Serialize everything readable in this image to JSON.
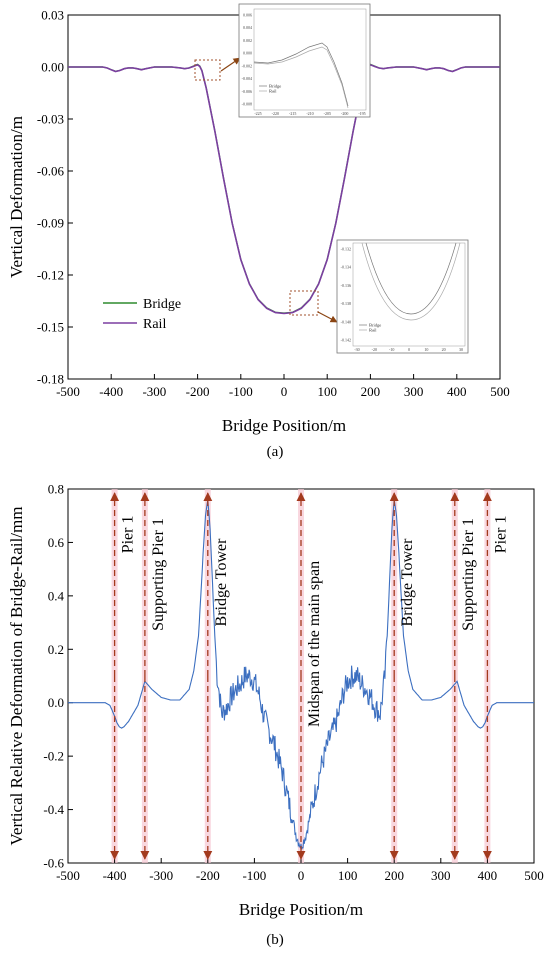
{
  "chart_data": [
    {
      "type": "line",
      "panel_label": "(a)",
      "xlabel": "Bridge Position/m",
      "ylabel": "Vertical Deformation/m",
      "xlim": [
        -500,
        500
      ],
      "ylim": [
        -0.18,
        0.03
      ],
      "x_ticks": [
        -500,
        -400,
        -300,
        -200,
        -100,
        0,
        100,
        200,
        300,
        400,
        500
      ],
      "y_ticks": [
        "0.03",
        "0.00",
        "-0.03",
        "-0.06",
        "-0.09",
        "-0.12",
        "-0.15",
        "-0.18"
      ],
      "y_tick_values": [
        0.03,
        0.0,
        -0.03,
        -0.06,
        -0.09,
        -0.12,
        -0.15,
        -0.18
      ],
      "legend_position": "bottom-left",
      "series": [
        {
          "name": "Bridge",
          "color": "#2e8b2e",
          "x": [
            -500,
            -420,
            -410,
            -400,
            -390,
            -380,
            -370,
            -360,
            -350,
            -340,
            -330,
            -320,
            -300,
            -260,
            -240,
            -230,
            -220,
            -210,
            -205,
            -200,
            -195,
            -190,
            -180,
            -160,
            -140,
            -120,
            -100,
            -80,
            -60,
            -40,
            -20,
            0,
            20,
            40,
            60,
            80,
            100,
            120,
            140,
            160,
            180,
            190,
            195,
            200,
            205,
            210,
            220,
            230,
            240,
            260,
            300,
            320,
            330,
            340,
            350,
            360,
            370,
            380,
            390,
            400,
            410,
            420,
            500
          ],
          "y": [
            0.0,
            0.0,
            -0.0005,
            -0.0015,
            -0.0025,
            -0.002,
            -0.001,
            -0.0005,
            -0.0005,
            -0.001,
            -0.0015,
            -0.001,
            0.0,
            0.0,
            -0.0005,
            -0.001,
            -0.0005,
            0.0005,
            0.001,
            0.0015,
            0.0005,
            -0.002,
            -0.012,
            -0.037,
            -0.064,
            -0.09,
            -0.111,
            -0.125,
            -0.134,
            -0.139,
            -0.1415,
            -0.142,
            -0.1415,
            -0.139,
            -0.134,
            -0.125,
            -0.111,
            -0.09,
            -0.064,
            -0.037,
            -0.012,
            -0.002,
            0.0005,
            0.0015,
            0.001,
            0.0005,
            -0.0005,
            -0.001,
            -0.0005,
            0.0,
            0.0,
            -0.001,
            -0.0015,
            -0.001,
            -0.0005,
            -0.0005,
            -0.001,
            -0.002,
            -0.0025,
            -0.0015,
            -0.0005,
            0.0,
            0.0
          ]
        },
        {
          "name": "Rail",
          "color": "#7b3fa0",
          "x": [
            -500,
            -420,
            -410,
            -400,
            -390,
            -380,
            -370,
            -360,
            -350,
            -340,
            -330,
            -320,
            -300,
            -260,
            -240,
            -230,
            -220,
            -210,
            -205,
            -200,
            -195,
            -190,
            -180,
            -160,
            -140,
            -120,
            -100,
            -80,
            -60,
            -40,
            -20,
            0,
            20,
            40,
            60,
            80,
            100,
            120,
            140,
            160,
            180,
            190,
            195,
            200,
            205,
            210,
            220,
            230,
            240,
            260,
            300,
            320,
            330,
            340,
            350,
            360,
            370,
            380,
            390,
            400,
            410,
            420,
            500
          ],
          "y": [
            0.0,
            0.0,
            -0.0005,
            -0.0016,
            -0.0026,
            -0.002,
            -0.001,
            -0.0005,
            -0.0005,
            -0.001,
            -0.0016,
            -0.001,
            0.0,
            0.0,
            -0.0005,
            -0.001,
            -0.0006,
            0.0003,
            0.0008,
            0.0012,
            0.0003,
            -0.0022,
            -0.0122,
            -0.0372,
            -0.0642,
            -0.0902,
            -0.1112,
            -0.1252,
            -0.1342,
            -0.1392,
            -0.1417,
            -0.1422,
            -0.1417,
            -0.1392,
            -0.1342,
            -0.1252,
            -0.1112,
            -0.0902,
            -0.0642,
            -0.0372,
            -0.0122,
            -0.0022,
            0.0003,
            0.0012,
            0.0008,
            0.0003,
            -0.0006,
            -0.001,
            -0.0005,
            0.0,
            0.0,
            -0.001,
            -0.0016,
            -0.001,
            -0.0005,
            -0.0005,
            -0.001,
            -0.002,
            -0.0026,
            -0.0016,
            -0.0005,
            0.0,
            0.0
          ]
        }
      ],
      "insets": [
        {
          "zoom_box": {
            "x": [
              -245,
              -195
            ],
            "y": [
              -0.007,
              0.003
            ]
          },
          "y_ticks": [
            "0.006",
            "0.004",
            "0.002",
            "0.000",
            "-0.002",
            "-0.004",
            "-0.006",
            "-0.008"
          ],
          "x_ticks": [
            "-225",
            "-220",
            "-215",
            "-210",
            "-205",
            "-200",
            "-195"
          ],
          "legend": [
            "Bridge",
            "Rail"
          ]
        },
        {
          "zoom_box": {
            "x": [
              -30,
              30
            ],
            "y": [
              -0.146,
              -0.131
            ]
          },
          "y_ticks": [
            "-0.132",
            "-0.134",
            "-0.136",
            "-0.138",
            "-0.140",
            "-0.142"
          ],
          "x_ticks": [
            "-30",
            "-20",
            "-10",
            "0",
            "10",
            "20",
            "30"
          ],
          "legend": [
            "Bridge",
            "Rail"
          ]
        }
      ]
    },
    {
      "type": "line",
      "panel_label": "(b)",
      "xlabel": "Bridge Position/m",
      "ylabel": "Vertical Relative Deformation of Bridge-Rail/mm",
      "xlim": [
        -500,
        500
      ],
      "ylim": [
        -0.6,
        0.8
      ],
      "x_ticks": [
        -500,
        -400,
        -300,
        -200,
        -100,
        0,
        100,
        200,
        300,
        400,
        500
      ],
      "y_ticks": [
        "0.8",
        "0.6",
        "0.4",
        "0.2",
        "0.0",
        "-0.2",
        "-0.4",
        "-0.6"
      ],
      "y_tick_values": [
        0.8,
        0.6,
        0.4,
        0.2,
        0.0,
        -0.2,
        -0.4,
        -0.6
      ],
      "series": [
        {
          "color": "#3c6fc0",
          "x": [
            -500,
            -420,
            -410,
            -405,
            -400,
            -395,
            -390,
            -385,
            -380,
            -370,
            -360,
            -350,
            -345,
            -340,
            -335,
            -330,
            -320,
            -300,
            -280,
            -260,
            -240,
            -230,
            -220,
            -215,
            -210,
            -205,
            -200,
            -195,
            -190,
            -185,
            -180,
            -170,
            -160,
            -150,
            -140,
            -130,
            -120,
            -110,
            -100,
            -90,
            -80,
            -70,
            -60,
            -50,
            -40,
            -30,
            -20,
            -10,
            0,
            10,
            20,
            30,
            40,
            50,
            60,
            70,
            80,
            90,
            100,
            110,
            120,
            130,
            140,
            150,
            160,
            170,
            180,
            185,
            190,
            195,
            200,
            205,
            210,
            215,
            220,
            230,
            240,
            260,
            280,
            300,
            320,
            330,
            335,
            340,
            345,
            350,
            360,
            370,
            380,
            385,
            390,
            395,
            400,
            405,
            410,
            420,
            500
          ],
          "y": [
            0.0,
            0.0,
            -0.01,
            -0.03,
            -0.05,
            -0.075,
            -0.09,
            -0.095,
            -0.09,
            -0.07,
            -0.04,
            -0.01,
            0.02,
            0.05,
            0.08,
            0.07,
            0.05,
            0.02,
            0.01,
            0.01,
            0.05,
            0.12,
            0.25,
            0.4,
            0.56,
            0.7,
            0.76,
            0.65,
            0.45,
            0.25,
            0.1,
            -0.04,
            -0.02,
            0.02,
            0.05,
            0.07,
            0.1,
            0.1,
            0.08,
            0.03,
            -0.05,
            -0.1,
            -0.14,
            -0.2,
            -0.26,
            -0.34,
            -0.42,
            -0.5,
            -0.54,
            -0.5,
            -0.42,
            -0.34,
            -0.26,
            -0.2,
            -0.14,
            -0.1,
            -0.05,
            0.03,
            0.08,
            0.1,
            0.1,
            0.07,
            0.05,
            0.02,
            -0.02,
            -0.04,
            0.1,
            0.25,
            0.45,
            0.65,
            0.76,
            0.7,
            0.56,
            0.4,
            0.25,
            0.12,
            0.05,
            0.01,
            0.01,
            0.02,
            0.05,
            0.07,
            0.08,
            0.05,
            0.02,
            -0.01,
            -0.04,
            -0.07,
            -0.09,
            -0.095,
            -0.09,
            -0.075,
            -0.05,
            -0.03,
            -0.01,
            0.0,
            0.0
          ]
        }
      ],
      "annotations": [
        {
          "x": -400,
          "text": "Pier 1",
          "text_y": 0.63
        },
        {
          "x": -335,
          "text": "Supporting Pier 1",
          "text_y": 0.48
        },
        {
          "x": -200,
          "text": "Bridge Tower",
          "text_y": 0.45
        },
        {
          "x": 0,
          "text": "Midspan of the main span",
          "text_y": 0.22
        },
        {
          "x": 200,
          "text": "Bridge Tower",
          "text_y": 0.45
        },
        {
          "x": 330,
          "text": "Supporting Pier 1",
          "text_y": 0.48
        },
        {
          "x": 400,
          "text": "Pier 1",
          "text_y": 0.63
        }
      ]
    }
  ]
}
